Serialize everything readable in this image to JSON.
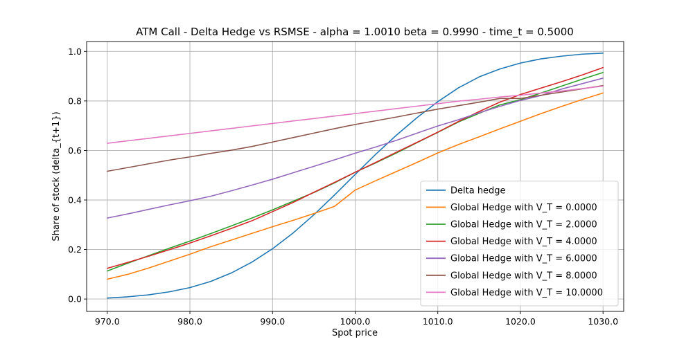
{
  "chart_data": {
    "type": "line",
    "title": "ATM Call - Delta Hedge vs RSMSE - alpha = 1.0010 beta = 0.9990 - time_t = 0.5000",
    "xlabel": "Spot price",
    "ylabel": "Share of stock (delta_{t+1})",
    "xlim": [
      967.5,
      1032.5
    ],
    "ylim": [
      -0.05,
      1.04
    ],
    "xticks": [
      970,
      980,
      990,
      1000,
      1010,
      1020,
      1030
    ],
    "xtick_labels": [
      "970.0",
      "980.0",
      "990.0",
      "1000.0",
      "1010.0",
      "1020.0",
      "1030.0"
    ],
    "yticks": [
      0.0,
      0.2,
      0.4,
      0.6,
      0.8,
      1.0
    ],
    "ytick_labels": [
      "0.0",
      "0.2",
      "0.4",
      "0.6",
      "0.8",
      "1.0"
    ],
    "grid": true,
    "legend_position": "lower-right",
    "x": [
      970,
      972.5,
      975,
      977.5,
      980,
      982.5,
      985,
      987.5,
      990,
      992.5,
      995,
      997.5,
      1000,
      1002.5,
      1005,
      1007.5,
      1010,
      1012.5,
      1015,
      1017.5,
      1020,
      1022.5,
      1025,
      1027.5,
      1030
    ],
    "series": [
      {
        "name": "Delta hedge",
        "color": "#1f77b4",
        "values": [
          0.004,
          0.009,
          0.017,
          0.029,
          0.046,
          0.071,
          0.105,
          0.149,
          0.203,
          0.267,
          0.34,
          0.42,
          0.503,
          0.585,
          0.662,
          0.733,
          0.797,
          0.853,
          0.897,
          0.929,
          0.953,
          0.97,
          0.981,
          0.989,
          0.993
        ]
      },
      {
        "name": "Global Hedge with V_T = 0.0000",
        "color": "#ff7f0e",
        "values": [
          0.08,
          0.1,
          0.125,
          0.153,
          0.181,
          0.211,
          0.238,
          0.265,
          0.292,
          0.318,
          0.345,
          0.374,
          0.44,
          0.478,
          0.515,
          0.552,
          0.59,
          0.624,
          0.655,
          0.687,
          0.718,
          0.749,
          0.778,
          0.806,
          0.832
        ]
      },
      {
        "name": "Global Hedge with V_T = 2.0000",
        "color": "#2ca02c",
        "values": [
          0.113,
          0.145,
          0.175,
          0.205,
          0.234,
          0.264,
          0.295,
          0.327,
          0.36,
          0.395,
          0.43,
          0.469,
          0.512,
          0.55,
          0.59,
          0.632,
          0.673,
          0.715,
          0.75,
          0.784,
          0.805,
          0.832,
          0.86,
          0.888,
          0.915
        ]
      },
      {
        "name": "Global Hedge with V_T = 4.0000",
        "color": "#d62728",
        "values": [
          0.124,
          0.148,
          0.173,
          0.199,
          0.226,
          0.255,
          0.285,
          0.316,
          0.353,
          0.39,
          0.431,
          0.471,
          0.512,
          0.552,
          0.593,
          0.633,
          0.674,
          0.717,
          0.757,
          0.795,
          0.826,
          0.852,
          0.878,
          0.905,
          0.935
        ]
      },
      {
        "name": "Global Hedge with V_T = 6.0000",
        "color": "#9467bd",
        "values": [
          0.327,
          0.344,
          0.362,
          0.38,
          0.397,
          0.415,
          0.437,
          0.46,
          0.484,
          0.51,
          0.536,
          0.562,
          0.589,
          0.614,
          0.641,
          0.67,
          0.699,
          0.724,
          0.752,
          0.778,
          0.802,
          0.822,
          0.848,
          0.87,
          0.892
        ]
      },
      {
        "name": "Global Hedge with V_T = 8.0000",
        "color": "#8c564b",
        "values": [
          0.516,
          0.531,
          0.546,
          0.561,
          0.574,
          0.588,
          0.601,
          0.616,
          0.634,
          0.652,
          0.67,
          0.688,
          0.705,
          0.72,
          0.735,
          0.751,
          0.767,
          0.781,
          0.795,
          0.81,
          0.81,
          0.823,
          0.836,
          0.849,
          0.862
        ]
      },
      {
        "name": "Global Hedge with V_T = 10.0000",
        "color": "#e377c2",
        "values": [
          0.629,
          0.639,
          0.649,
          0.659,
          0.669,
          0.679,
          0.689,
          0.699,
          0.709,
          0.719,
          0.729,
          0.739,
          0.749,
          0.759,
          0.769,
          0.779,
          0.789,
          0.799,
          0.807,
          0.816,
          0.823,
          0.832,
          0.84,
          0.85,
          0.86
        ]
      }
    ]
  }
}
